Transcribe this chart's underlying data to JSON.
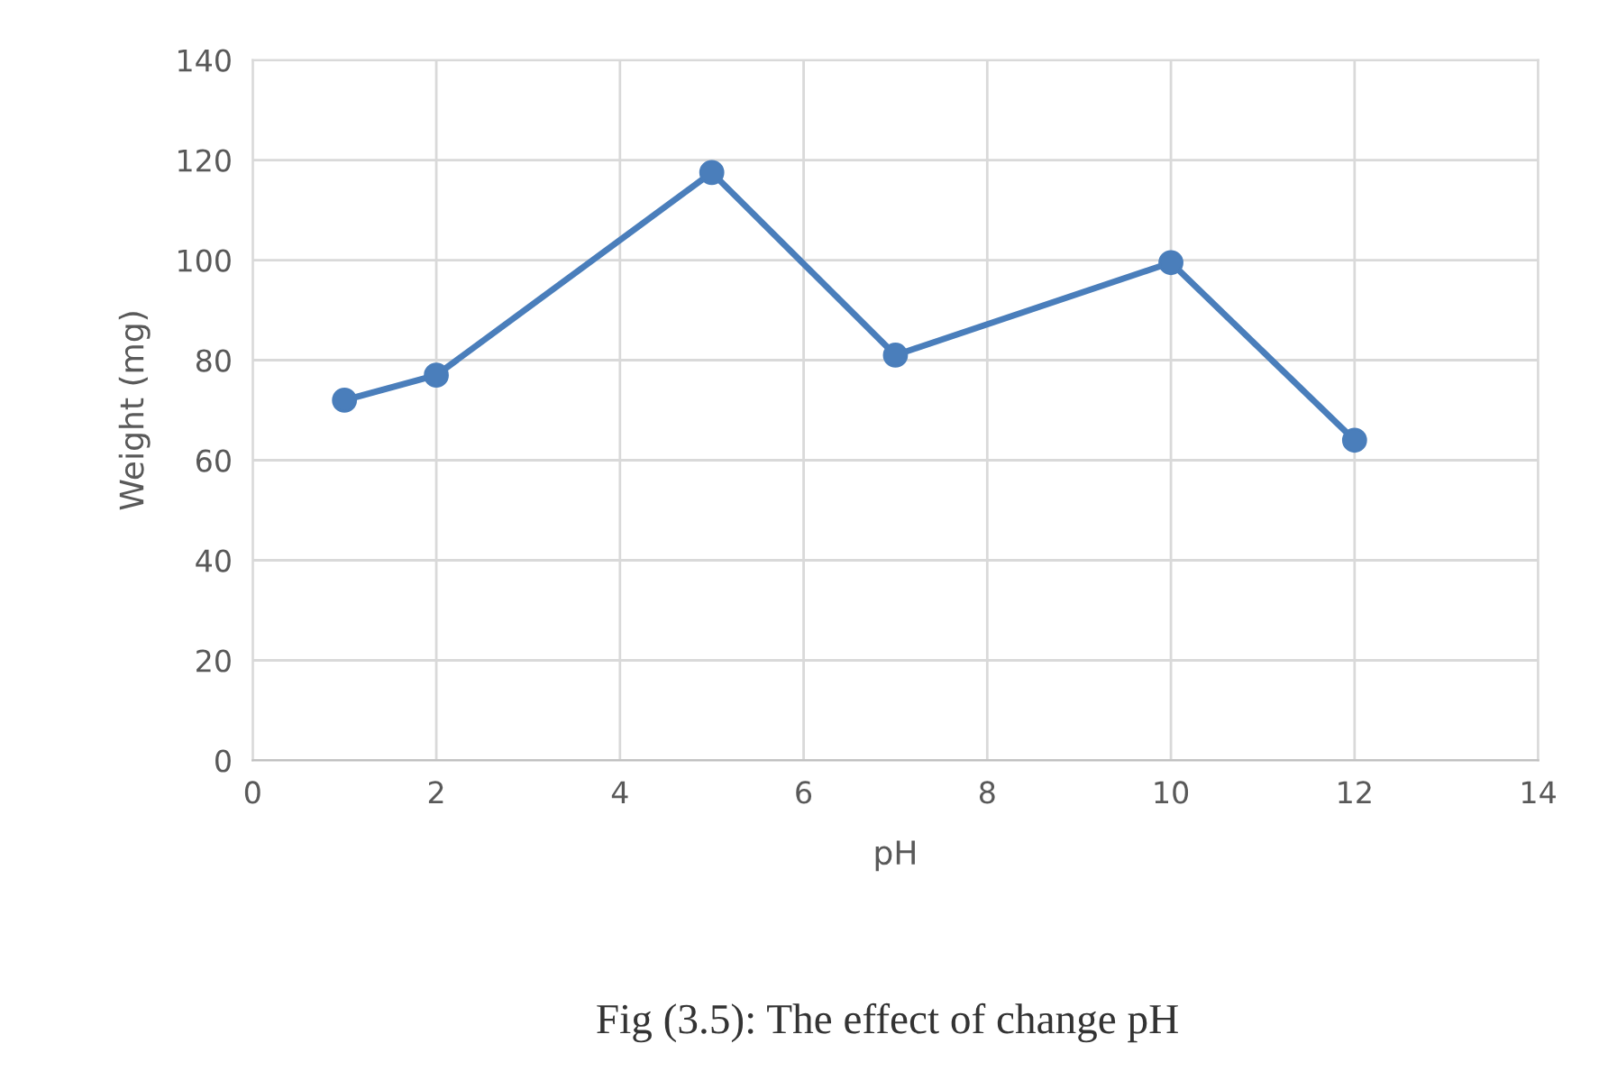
{
  "chart_data": {
    "type": "line",
    "xlabel": "pH",
    "ylabel": "Weight (mg)",
    "x": [
      1,
      2,
      5,
      7,
      10,
      12
    ],
    "series": [
      {
        "color": "#4a7ebb",
        "values": [
          72,
          77,
          117.5,
          81,
          99.5,
          64
        ]
      }
    ],
    "xlim": [
      0,
      14
    ],
    "xticks": [
      0,
      2,
      4,
      6,
      8,
      10,
      12,
      14
    ],
    "ylim": [
      0,
      140
    ],
    "yticks": [
      0,
      20,
      40,
      60,
      80,
      100,
      120,
      140
    ],
    "grid": true,
    "marker": "circle",
    "line_style": "solid",
    "legend": false,
    "annotations": [
      "Fig (3.5): The effect of change pH"
    ]
  }
}
